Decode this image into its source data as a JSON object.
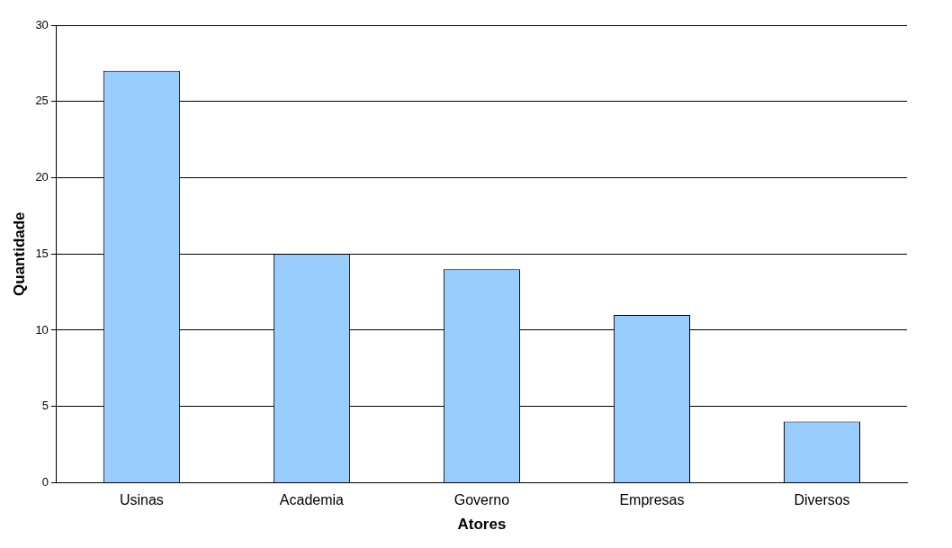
{
  "chart_data": {
    "type": "bar",
    "xlabel": "Atores",
    "ylabel": "Quantidade",
    "categories": [
      "Usinas",
      "Academia",
      "Governo",
      "Empresas",
      "Diversos"
    ],
    "values": [
      27,
      15,
      14,
      11,
      4
    ],
    "color": "#99ccff",
    "ylim": [
      0,
      30
    ],
    "yticks": [
      0,
      5,
      10,
      15,
      20,
      25,
      30
    ],
    "grid": "y",
    "legend": false
  }
}
